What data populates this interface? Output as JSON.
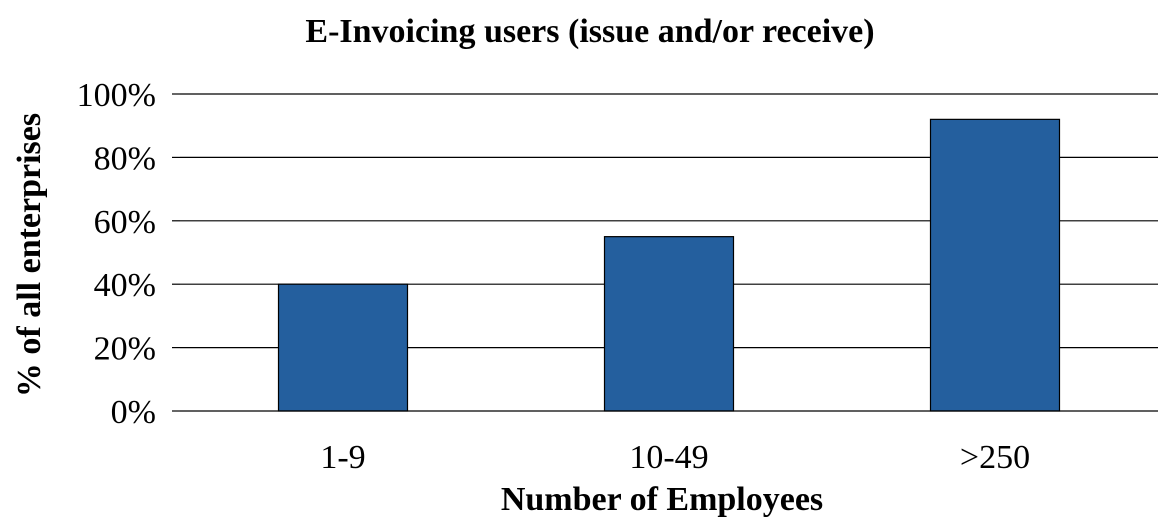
{
  "chart_data": {
    "type": "bar",
    "title": "E-Invoicing users (issue and/or receive)",
    "xlabel": "Number of Employees",
    "ylabel": "% of all enterprises",
    "categories": [
      "1-9",
      "10-49",
      ">250"
    ],
    "values": [
      40,
      55,
      92
    ],
    "ylim": [
      0,
      100
    ],
    "yticks": [
      0,
      20,
      40,
      60,
      80,
      100
    ],
    "ytick_labels": [
      "0%",
      "20%",
      "40%",
      "60%",
      "80%",
      "100%"
    ],
    "grid": true,
    "legend": "none",
    "bar_color": "#245F9E"
  }
}
